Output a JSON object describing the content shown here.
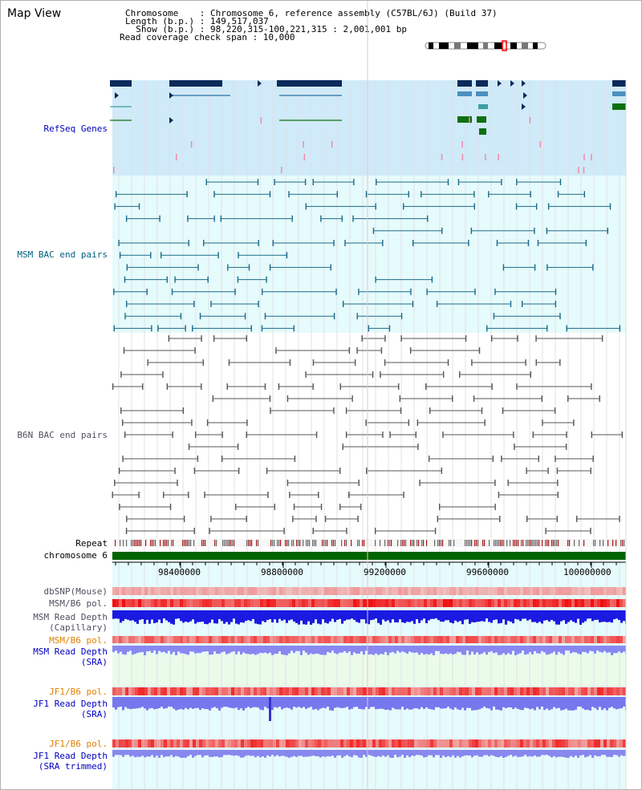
{
  "header": {
    "title": "Map View",
    "line1": "Chromosome    : Chromosome 6, reference assembly (C57BL/6J) (Build 37)",
    "line2": "Length (b.p.) : 149,517,037",
    "line3": "  Show (b.p.) : 98,220,315-100,221,315 : 2,001,001 bp",
    "line4": "Read coverage check span : 10,000"
  },
  "tracks": {
    "refseq": "RefSeq Genes",
    "msm_bac": "MSM BAC end pairs",
    "b6n_bac": "B6N BAC end pairs",
    "repeat": "Repeat",
    "chromosome": "chromosome 6",
    "dbsnp": "dbSNP(Mouse)",
    "msm_b6_pol_1": "MSM/B6 pol.",
    "msm_read_depth_cap_1": "MSM Read Depth",
    "msm_read_depth_cap_2": "(Capillary)",
    "msm_b6_pol_2": "MSM/B6 pol.",
    "msm_read_depth_sra_1": "MSM Read Depth",
    "msm_read_depth_sra_2": "(SRA)",
    "jf1_b6_pol_1": "JF1/B6 pol.",
    "jf1_read_depth_sra_1": "JF1 Read Depth",
    "jf1_read_depth_sra_2": "(SRA)",
    "jf1_b6_pol_2": "JF1/B6 pol.",
    "jf1_read_depth_trim_1": "JF1 Read Depth",
    "jf1_read_depth_trim_2": "(SRA trimmed)"
  },
  "axis": {
    "ticks": [
      "98400000",
      "98800000",
      "99200000",
      "99600000",
      "100000000"
    ],
    "range": [
      98220315,
      100221315
    ]
  },
  "colors": {
    "refseq_bg": "#cfeaf8",
    "msm_bg": "#e6fbfb",
    "label_blue": "#0000c0",
    "label_teal": "#006080",
    "label_orange": "#e08000",
    "chromosome": "#006400",
    "grid": "#c8c8d8"
  }
}
